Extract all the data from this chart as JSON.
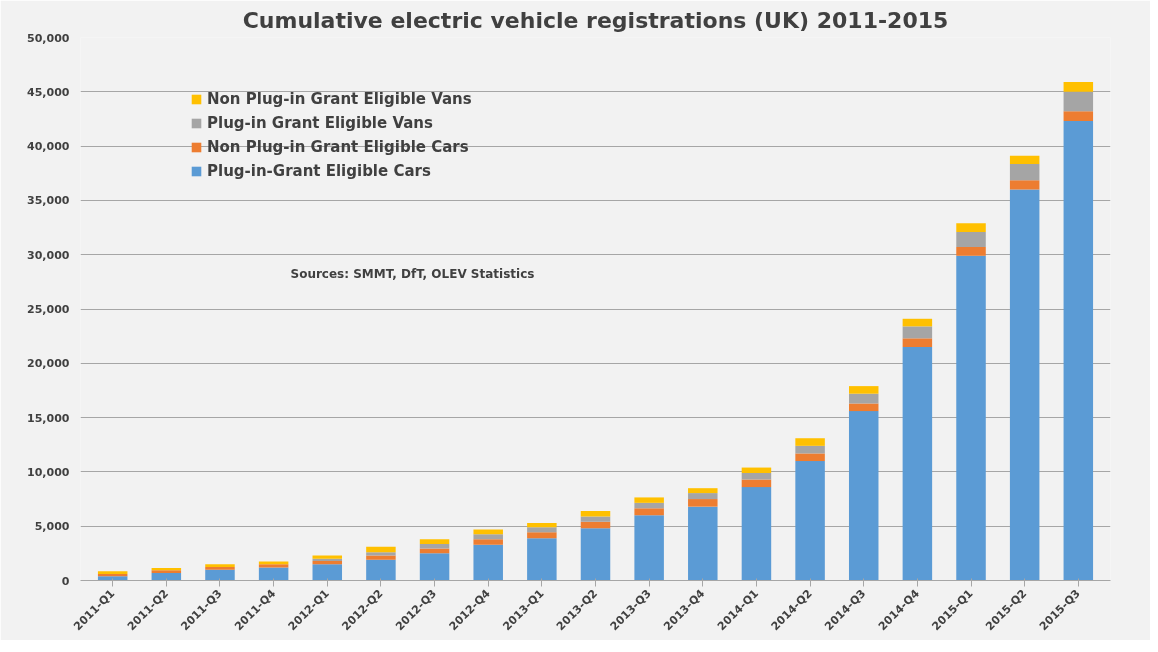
{
  "chart_data": {
    "type": "bar",
    "stacked": true,
    "title": "Cumulative electric vehicle registrations (UK) 2011-2015",
    "categories": [
      "2011-Q1",
      "2011-Q2",
      "2011-Q3",
      "2011-Q4",
      "2012-Q1",
      "2012-Q2",
      "2012-Q3",
      "2012-Q4",
      "2013-Q1",
      "2013-Q2",
      "2013-Q3",
      "2013-Q4",
      "2014-Q1",
      "2014-Q2",
      "2014-Q3",
      "2014-Q4",
      "2015-Q1",
      "2015-Q2",
      "2015-Q3"
    ],
    "series": [
      {
        "name": "Plug-in-Grant Eligible Cars",
        "color": "#5b9bd5",
        "values": [
          400,
          700,
          1000,
          1200,
          1500,
          1900,
          2500,
          3300,
          3900,
          4800,
          6000,
          6800,
          8600,
          11000,
          15600,
          21500,
          29900,
          36000,
          42300
        ]
      },
      {
        "name": "Non Plug-in Grant Eligible Cars",
        "color": "#ed7d31",
        "values": [
          200,
          250,
          250,
          300,
          300,
          400,
          450,
          500,
          550,
          600,
          650,
          700,
          700,
          700,
          700,
          800,
          800,
          850,
          900
        ]
      },
      {
        "name": "Plug-in Grant Eligible Vans",
        "color": "#a5a5a5",
        "values": [
          null,
          null,
          null,
          null,
          200,
          300,
          400,
          450,
          450,
          500,
          500,
          550,
          600,
          700,
          900,
          1100,
          1400,
          1500,
          1800
        ]
      },
      {
        "name": "Non Plug-in Grant Eligible Vans",
        "color": "#ffc000",
        "values": [
          250,
          200,
          250,
          250,
          300,
          500,
          450,
          450,
          400,
          500,
          500,
          450,
          500,
          700,
          700,
          700,
          800,
          750,
          900
        ]
      }
    ],
    "ylim": [
      0,
      50000
    ],
    "yticks": [
      {
        "value": 0,
        "label": "0"
      },
      {
        "value": 5000,
        "label": "5,000"
      },
      {
        "value": 10000,
        "label": "10,000"
      },
      {
        "value": 15000,
        "label": "15,000"
      },
      {
        "value": 20000,
        "label": "20,000"
      },
      {
        "value": 25000,
        "label": "25,000"
      },
      {
        "value": 30000,
        "label": "30,000"
      },
      {
        "value": 35000,
        "label": "35,000"
      },
      {
        "value": 40000,
        "label": "40,000"
      },
      {
        "value": 45000,
        "label": "45,000"
      },
      {
        "value": 50000,
        "label": "50,000"
      }
    ],
    "grid": "y",
    "legend": "top left",
    "annotations": [
      "Sources: SMMT, DfT, OLEV Statistics"
    ]
  }
}
